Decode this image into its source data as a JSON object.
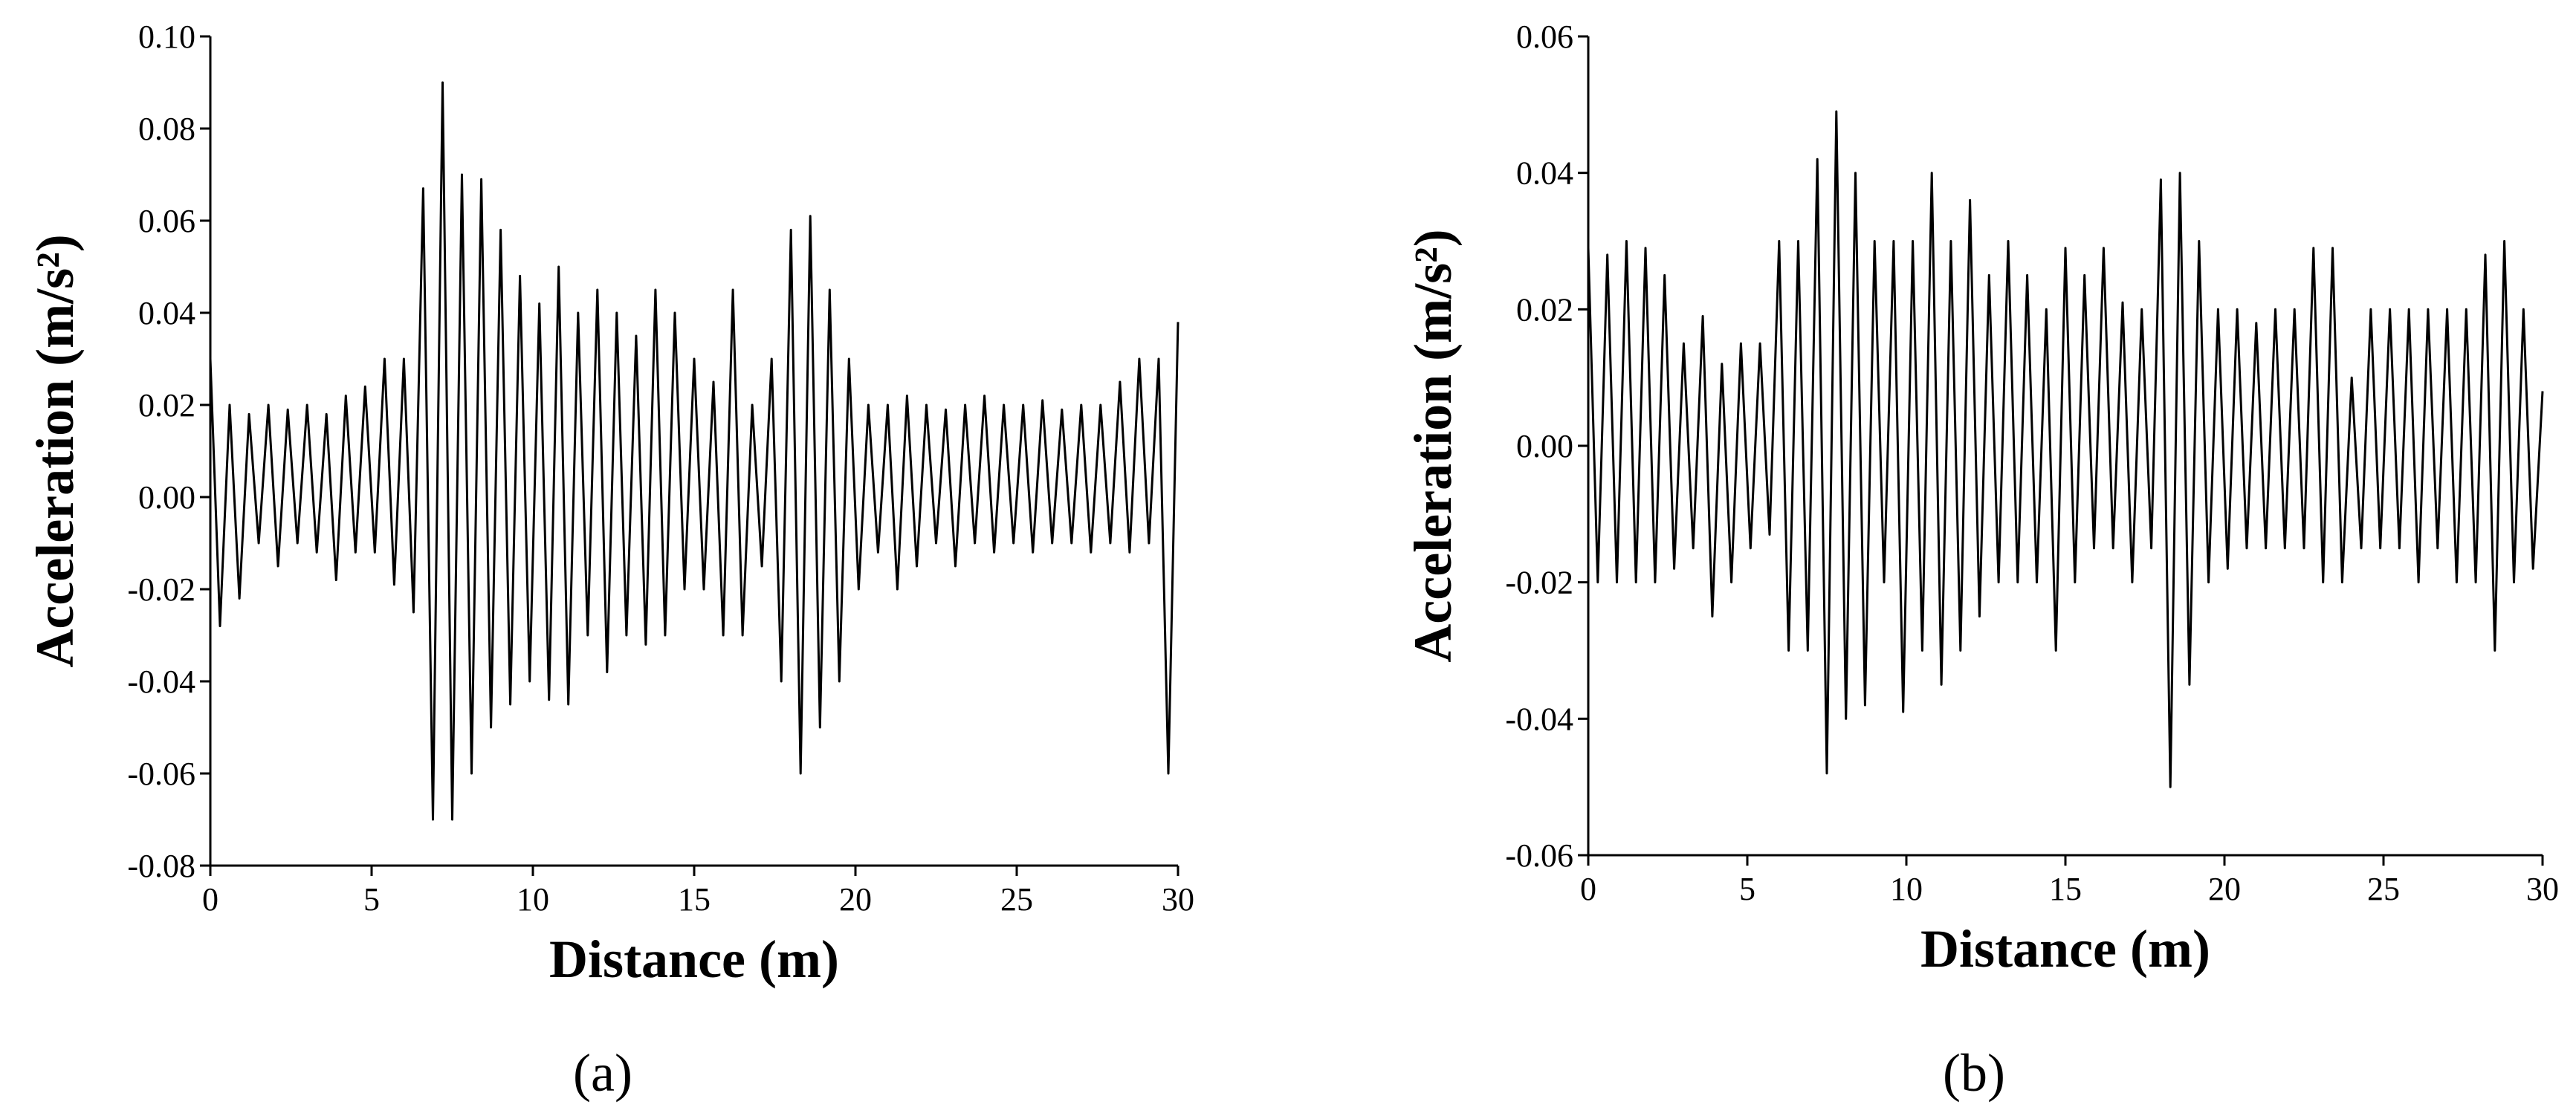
{
  "chart_data": [
    {
      "type": "line",
      "caption": "(a)",
      "xlabel": "Distance (m)",
      "ylabel": "Acceleration (m/s²)",
      "xlim": [
        0,
        30
      ],
      "xticks": [
        0,
        5,
        10,
        15,
        20,
        25,
        30
      ],
      "ylim": [
        -0.08,
        0.1
      ],
      "yticks": [
        -0.08,
        -0.06,
        -0.04,
        -0.02,
        {
          "value": 0,
          "label": "0.00"
        },
        0.02,
        0.04,
        0.06,
        0.08,
        {
          "value": 0.1,
          "label": "0.10"
        }
      ],
      "color": "#000000",
      "x": [
        0,
        0.3,
        0.6,
        0.9,
        1.2,
        1.5,
        1.8,
        2.1,
        2.4,
        2.7,
        3,
        3.3,
        3.6,
        3.9,
        4.2,
        4.5,
        4.8,
        5.1,
        5.4,
        5.7,
        6,
        6.3,
        6.6,
        6.9,
        7.2,
        7.5,
        7.8,
        8.1,
        8.4,
        8.7,
        9,
        9.3,
        9.6,
        9.9,
        10.2,
        10.5,
        10.8,
        11.1,
        11.4,
        11.7,
        12,
        12.3,
        12.6,
        12.9,
        13.2,
        13.5,
        13.8,
        14.1,
        14.4,
        14.7,
        15,
        15.3,
        15.6,
        15.9,
        16.2,
        16.5,
        16.8,
        17.1,
        17.4,
        17.7,
        18,
        18.3,
        18.6,
        18.9,
        19.2,
        19.5,
        19.8,
        20.1,
        20.4,
        20.7,
        21,
        21.3,
        21.6,
        21.9,
        22.2,
        22.5,
        22.8,
        23.1,
        23.4,
        23.7,
        24,
        24.3,
        24.6,
        24.9,
        25.2,
        25.5,
        25.8,
        26.1,
        26.4,
        26.7,
        27,
        27.3,
        27.6,
        27.9,
        28.2,
        28.5,
        28.8,
        29.1,
        29.4,
        29.7,
        30
      ],
      "values": [
        0.03,
        -0.028,
        0.02,
        -0.022,
        0.018,
        -0.01,
        0.02,
        -0.015,
        0.019,
        -0.01,
        0.02,
        -0.012,
        0.018,
        -0.018,
        0.022,
        -0.012,
        0.024,
        -0.012,
        0.03,
        -0.019,
        0.03,
        -0.025,
        0.067,
        -0.07,
        0.09,
        -0.07,
        0.07,
        -0.06,
        0.069,
        -0.05,
        0.058,
        -0.045,
        0.048,
        -0.04,
        0.042,
        -0.044,
        0.05,
        -0.045,
        0.04,
        -0.03,
        0.045,
        -0.038,
        0.04,
        -0.03,
        0.035,
        -0.032,
        0.045,
        -0.03,
        0.04,
        -0.02,
        0.03,
        -0.02,
        0.025,
        -0.03,
        0.045,
        -0.03,
        0.02,
        -0.015,
        0.03,
        -0.04,
        0.058,
        -0.06,
        0.061,
        -0.05,
        0.045,
        -0.04,
        0.03,
        -0.02,
        0.02,
        -0.012,
        0.02,
        -0.02,
        0.022,
        -0.015,
        0.02,
        -0.01,
        0.019,
        -0.015,
        0.02,
        -0.01,
        0.022,
        -0.012,
        0.02,
        -0.01,
        0.02,
        -0.012,
        0.021,
        -0.01,
        0.019,
        -0.01,
        0.02,
        -0.012,
        0.02,
        -0.01,
        0.025,
        -0.012,
        0.03,
        -0.01,
        0.03,
        -0.06,
        0.038
      ]
    },
    {
      "type": "line",
      "caption": "(b)",
      "xlabel": "Distance (m)",
      "ylabel": "Acceleration (m/s²)",
      "xlim": [
        0,
        30
      ],
      "xticks": [
        0,
        5,
        10,
        15,
        20,
        25,
        30
      ],
      "ylim": [
        -0.06,
        0.06
      ],
      "yticks": [
        -0.06,
        -0.04,
        -0.02,
        {
          "value": 0,
          "label": "0.00"
        },
        0.02,
        0.04,
        0.06
      ],
      "color": "#000000",
      "x": [
        0,
        0.3,
        0.6,
        0.9,
        1.2,
        1.5,
        1.8,
        2.1,
        2.4,
        2.7,
        3,
        3.3,
        3.6,
        3.9,
        4.2,
        4.5,
        4.8,
        5.1,
        5.4,
        5.7,
        6,
        6.3,
        6.6,
        6.9,
        7.2,
        7.5,
        7.8,
        8.1,
        8.4,
        8.7,
        9,
        9.3,
        9.6,
        9.9,
        10.2,
        10.5,
        10.8,
        11.1,
        11.4,
        11.7,
        12,
        12.3,
        12.6,
        12.9,
        13.2,
        13.5,
        13.8,
        14.1,
        14.4,
        14.7,
        15,
        15.3,
        15.6,
        15.9,
        16.2,
        16.5,
        16.8,
        17.1,
        17.4,
        17.7,
        18,
        18.3,
        18.6,
        18.9,
        19.2,
        19.5,
        19.8,
        20.1,
        20.4,
        20.7,
        21,
        21.3,
        21.6,
        21.9,
        22.2,
        22.5,
        22.8,
        23.1,
        23.4,
        23.7,
        24,
        24.3,
        24.6,
        24.9,
        25.2,
        25.5,
        25.8,
        26.1,
        26.4,
        26.7,
        27,
        27.3,
        27.6,
        27.9,
        28.2,
        28.5,
        28.8,
        29.1,
        29.4,
        29.7,
        30
      ],
      "values": [
        0.029,
        -0.02,
        0.028,
        -0.02,
        0.03,
        -0.02,
        0.029,
        -0.02,
        0.025,
        -0.018,
        0.015,
        -0.015,
        0.019,
        -0.025,
        0.012,
        -0.02,
        0.015,
        -0.015,
        0.015,
        -0.013,
        0.03,
        -0.03,
        0.03,
        -0.03,
        0.042,
        -0.048,
        0.049,
        -0.04,
        0.04,
        -0.038,
        0.03,
        -0.02,
        0.03,
        -0.039,
        0.03,
        -0.03,
        0.04,
        -0.035,
        0.03,
        -0.03,
        0.036,
        -0.025,
        0.025,
        -0.02,
        0.03,
        -0.02,
        0.025,
        -0.02,
        0.02,
        -0.03,
        0.029,
        -0.02,
        0.025,
        -0.015,
        0.029,
        -0.015,
        0.021,
        -0.02,
        0.02,
        -0.015,
        0.039,
        -0.05,
        0.04,
        -0.035,
        0.03,
        -0.02,
        0.02,
        -0.018,
        0.02,
        -0.015,
        0.018,
        -0.015,
        0.02,
        -0.015,
        0.02,
        -0.015,
        0.029,
        -0.02,
        0.029,
        -0.02,
        0.01,
        -0.015,
        0.02,
        -0.015,
        0.02,
        -0.015,
        0.02,
        -0.02,
        0.02,
        -0.015,
        0.02,
        -0.02,
        0.02,
        -0.02,
        0.028,
        -0.03,
        0.03,
        -0.02,
        0.02,
        -0.018,
        0.008
      ]
    }
  ]
}
